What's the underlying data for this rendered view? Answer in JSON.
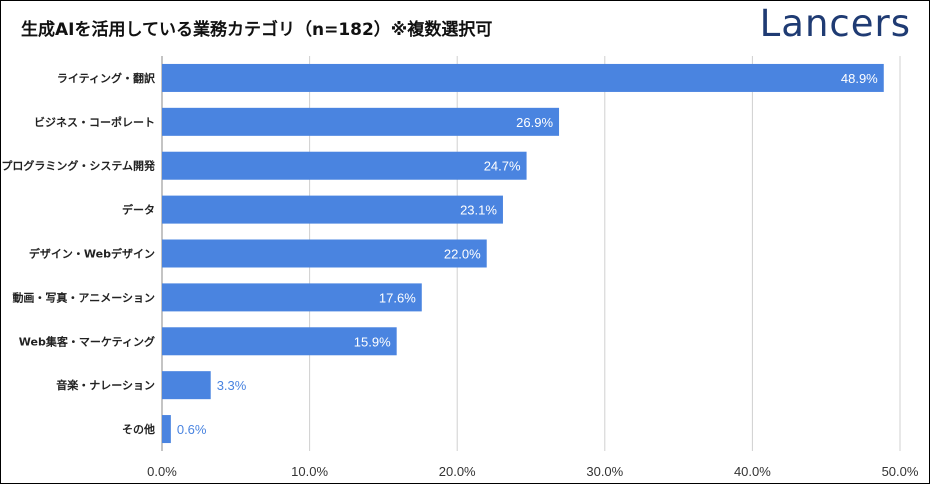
{
  "title": "生成AIを活用している業務カテゴリ（n=182）※複数選択可",
  "logo": "Lancers",
  "colors": {
    "bar": "#4a84e0",
    "grid": "#d0d0d0",
    "axis": "#888888",
    "logo": "#1f3b73",
    "label_outside": "#4a84e0"
  },
  "chart_data": {
    "type": "bar",
    "orientation": "horizontal",
    "categories": [
      "ライティング・翻訳",
      "ビジネス・コーポレート",
      "プログラミング・システム開発",
      "データ",
      "デザイン・Webデザイン",
      "動画・写真・アニメーション",
      "Web集客・マーケティング",
      "音楽・ナレーション",
      "その他"
    ],
    "values": [
      48.9,
      26.9,
      24.7,
      23.1,
      22.0,
      17.6,
      15.9,
      3.3,
      0.6
    ],
    "value_labels": [
      "48.9%",
      "26.9%",
      "24.7%",
      "23.1%",
      "22.0%",
      "17.6%",
      "15.9%",
      "3.3%",
      "0.6%"
    ],
    "xlim": [
      0,
      50
    ],
    "ticks": [
      0,
      10,
      20,
      30,
      40,
      50
    ],
    "tick_labels": [
      "0.0%",
      "10.0%",
      "20.0%",
      "30.0%",
      "40.0%",
      "50.0%"
    ],
    "grid": true,
    "legend": "none"
  }
}
